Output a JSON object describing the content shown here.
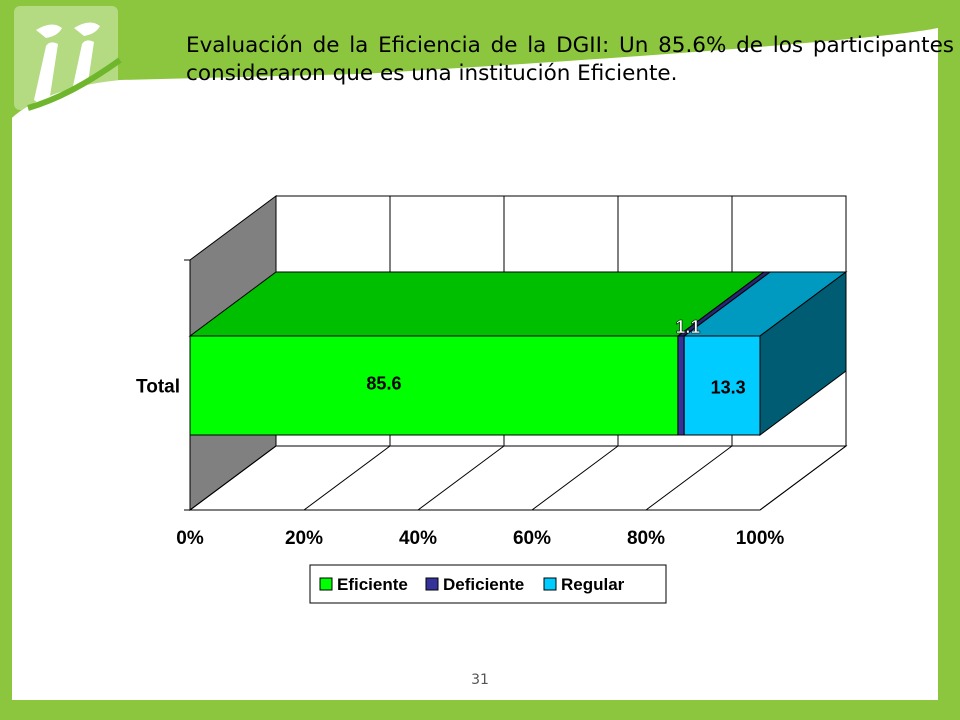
{
  "slide": {
    "heading": "Evaluación de la Eficiencia de la DGII: Un 85.6% de los participantes consideraron que es una institución Eficiente.",
    "page_number": "31",
    "colors": {
      "frame_green": "#8cc63f",
      "frame_dark": "#5e9a1e",
      "logo_green": "#6fb62c"
    }
  },
  "chart_data": {
    "type": "bar",
    "orientation": "horizontal",
    "stacked": "percent",
    "three_d": true,
    "categories": [
      "Total"
    ],
    "series": [
      {
        "name": "Eficiente",
        "values": [
          85.6
        ],
        "color": "#00ff00"
      },
      {
        "name": "Deficiente",
        "values": [
          1.1
        ],
        "color": "#333399"
      },
      {
        "name": "Regular",
        "values": [
          13.3
        ],
        "color": "#00ccff"
      }
    ],
    "x_ticks": [
      "0%",
      "20%",
      "40%",
      "60%",
      "80%",
      "100%"
    ],
    "xlim": [
      0,
      100
    ],
    "grid": true,
    "legend_position": "bottom",
    "data_labels": true
  }
}
